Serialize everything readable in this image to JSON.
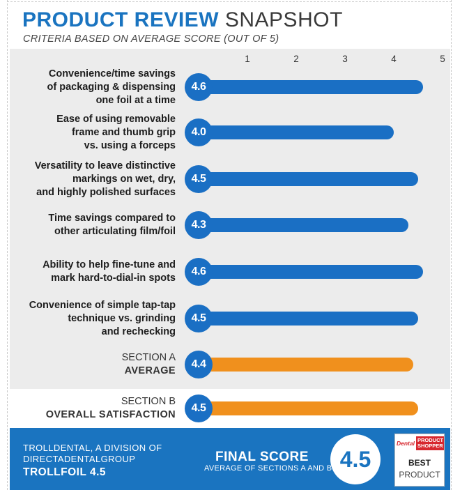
{
  "header": {
    "title_bold": "PRODUCT REVIEW",
    "title_light": "SNAPSHOT",
    "subtitle": "CRITERIA BASED ON AVERAGE SCORE (OUT OF 5)"
  },
  "chart_data": {
    "type": "bar",
    "orientation": "horizontal",
    "title": "PRODUCT REVIEW SNAPSHOT",
    "subtitle": "CRITERIA BASED ON AVERAGE SCORE (OUT OF 5)",
    "x_ticks": [
      "1",
      "2",
      "3",
      "4",
      "5"
    ],
    "xlim": [
      0,
      5
    ],
    "criteria": [
      {
        "lines": [
          "Convenience/time savings",
          "of packaging & dispensing",
          "one foil at a time"
        ],
        "score": 4.6,
        "label": "4.6",
        "color": "#1a6fc4"
      },
      {
        "lines": [
          "Ease of using removable",
          "frame and thumb grip",
          "vs. using a forceps"
        ],
        "score": 4.0,
        "label": "4.0",
        "color": "#1a6fc4"
      },
      {
        "lines": [
          "Versatility to leave distinctive",
          "markings on wet, dry,",
          "and highly polished surfaces"
        ],
        "score": 4.5,
        "label": "4.5",
        "color": "#1a6fc4"
      },
      {
        "lines": [
          "Time savings compared to",
          "other articulating film/foil"
        ],
        "score": 4.3,
        "label": "4.3",
        "color": "#1a6fc4"
      },
      {
        "lines": [
          "Ability to help fine-tune and",
          "mark hard-to-dial-in spots"
        ],
        "score": 4.6,
        "label": "4.6",
        "color": "#1a6fc4"
      },
      {
        "lines": [
          "Convenience of simple tap-tap",
          "technique vs. grinding",
          "and rechecking"
        ],
        "score": 4.5,
        "label": "4.5",
        "color": "#1a6fc4"
      }
    ],
    "section_a": {
      "line1": "SECTION A",
      "line2": "AVERAGE",
      "score": 4.4,
      "label": "4.4",
      "color": "#f0901d"
    },
    "section_b": {
      "line1": "SECTION B",
      "line2": "OVERALL SATISFACTION",
      "score": 4.5,
      "label": "4.5",
      "color": "#f0901d"
    }
  },
  "footer": {
    "company_line1": "TROLLDENTAL, A DIVISION OF",
    "company_line2": "DIRECTADENTALGROUP",
    "product_name": "TROLLFOIL 4.5",
    "final_score_label": "FINAL SCORE",
    "final_score_sub": "AVERAGE OF SECTIONS A AND B",
    "final_score_value": "4.5"
  },
  "award": {
    "brand_dental": "Dental",
    "brand_product_shopper": "PRODUCT SHOPPER",
    "best": "BEST",
    "product": "PRODUCT"
  },
  "colors": {
    "accent_blue": "#1a74c0",
    "bar_blue": "#1a6fc4",
    "bar_orange": "#f0901d",
    "panel_gray": "#ececec",
    "award_red": "#d7282f"
  }
}
